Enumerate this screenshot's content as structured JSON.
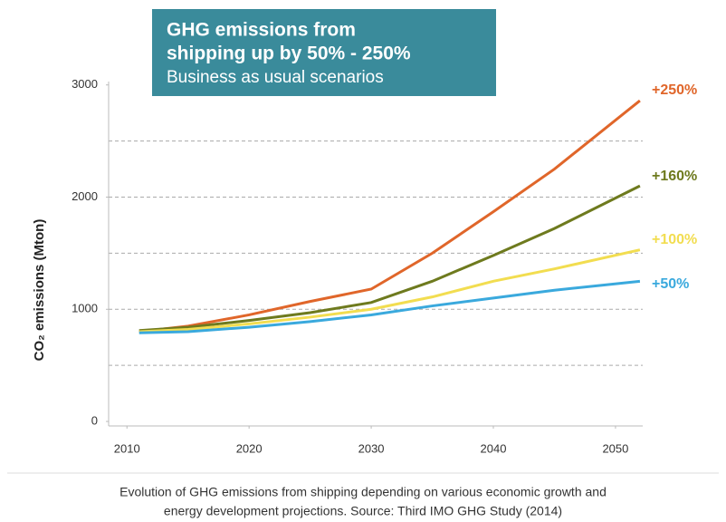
{
  "chart_data": {
    "type": "line",
    "title": [
      "GHG emissions from",
      "shipping up by 50% - 250%",
      "Business as usual scenarios"
    ],
    "y_label": "CO₂ emissions (Mton)",
    "caption": [
      "Evolution of GHG emissions from shipping depending on various economic growth and",
      "energy development projections. Source: Third IMO GHG Study (2014)"
    ],
    "x": [
      2011,
      2015,
      2020,
      2025,
      2030,
      2035,
      2040,
      2045,
      2052
    ],
    "series": [
      {
        "name": "+250%",
        "color": "#e0662a",
        "values": [
          800,
          850,
          950,
          1070,
          1180,
          1500,
          1870,
          2250,
          2860
        ]
      },
      {
        "name": "+160%",
        "color": "#6e7a1e",
        "values": [
          810,
          840,
          900,
          970,
          1060,
          1250,
          1480,
          1720,
          2100
        ]
      },
      {
        "name": "+100%",
        "color": "#f2dd50",
        "values": [
          800,
          820,
          870,
          930,
          1000,
          1110,
          1250,
          1360,
          1530
        ]
      },
      {
        "name": "+50%",
        "color": "#3aa9dd",
        "values": [
          790,
          800,
          840,
          890,
          950,
          1030,
          1100,
          1170,
          1250
        ]
      }
    ],
    "xlim": [
      2008.5,
      2052.6
    ],
    "xticks": [
      2010,
      2020,
      2030,
      2040,
      2050
    ],
    "ylim": [
      -40,
      3030
    ],
    "yticks": [
      0,
      1000,
      2000,
      3000
    ],
    "grid": [
      500,
      1000,
      1500,
      2000,
      2500
    ]
  }
}
